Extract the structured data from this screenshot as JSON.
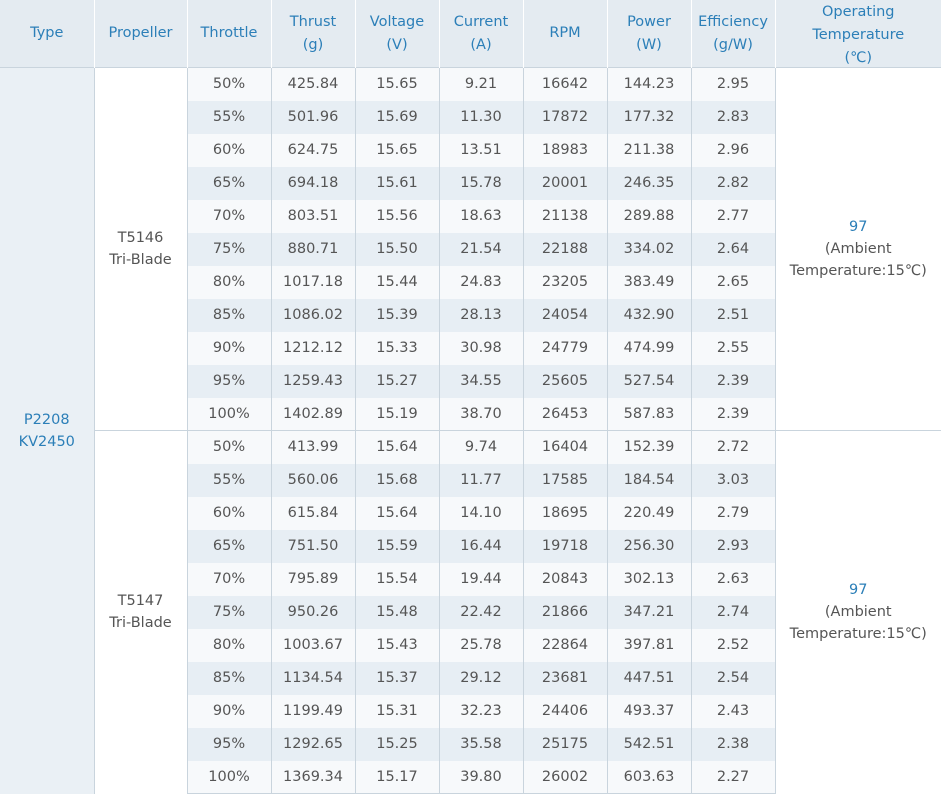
{
  "headers": {
    "type": "Type",
    "propeller": "Propeller",
    "throttle": "Throttle",
    "thrust": [
      "Thrust",
      "(g)"
    ],
    "voltage": [
      "Voltage",
      "(V)"
    ],
    "current": [
      "Current",
      "(A)"
    ],
    "rpm": "RPM",
    "power": [
      "Power",
      "(W)"
    ],
    "efficiency": [
      "Efficiency",
      "(g/W)"
    ],
    "operating_temperature": [
      "Operating",
      "Temperature",
      "(℃)"
    ]
  },
  "type": [
    "P2208",
    "KV2450"
  ],
  "groups": [
    {
      "propeller": [
        "T5146",
        "Tri-Blade"
      ],
      "temperature": [
        "97",
        "(Ambient",
        "Temperature:15℃)"
      ],
      "rows": [
        [
          "50%",
          "425.84",
          "15.65",
          "9.21",
          "16642",
          "144.23",
          "2.95"
        ],
        [
          "55%",
          "501.96",
          "15.69",
          "11.30",
          "17872",
          "177.32",
          "2.83"
        ],
        [
          "60%",
          "624.75",
          "15.65",
          "13.51",
          "18983",
          "211.38",
          "2.96"
        ],
        [
          "65%",
          "694.18",
          "15.61",
          "15.78",
          "20001",
          "246.35",
          "2.82"
        ],
        [
          "70%",
          "803.51",
          "15.56",
          "18.63",
          "21138",
          "289.88",
          "2.77"
        ],
        [
          "75%",
          "880.71",
          "15.50",
          "21.54",
          "22188",
          "334.02",
          "2.64"
        ],
        [
          "80%",
          "1017.18",
          "15.44",
          "24.83",
          "23205",
          "383.49",
          "2.65"
        ],
        [
          "85%",
          "1086.02",
          "15.39",
          "28.13",
          "24054",
          "432.90",
          "2.51"
        ],
        [
          "90%",
          "1212.12",
          "15.33",
          "30.98",
          "24779",
          "474.99",
          "2.55"
        ],
        [
          "95%",
          "1259.43",
          "15.27",
          "34.55",
          "25605",
          "527.54",
          "2.39"
        ],
        [
          "100%",
          "1402.89",
          "15.19",
          "38.70",
          "26453",
          "587.83",
          "2.39"
        ]
      ]
    },
    {
      "propeller": [
        "T5147",
        "Tri-Blade"
      ],
      "temperature": [
        "97",
        "(Ambient",
        "Temperature:15℃)"
      ],
      "rows": [
        [
          "50%",
          "413.99",
          "15.64",
          "9.74",
          "16404",
          "152.39",
          "2.72"
        ],
        [
          "55%",
          "560.06",
          "15.68",
          "11.77",
          "17585",
          "184.54",
          "3.03"
        ],
        [
          "60%",
          "615.84",
          "15.64",
          "14.10",
          "18695",
          "220.49",
          "2.79"
        ],
        [
          "65%",
          "751.50",
          "15.59",
          "16.44",
          "19718",
          "256.30",
          "2.93"
        ],
        [
          "70%",
          "795.89",
          "15.54",
          "19.44",
          "20843",
          "302.13",
          "2.63"
        ],
        [
          "75%",
          "950.26",
          "15.48",
          "22.42",
          "21866",
          "347.21",
          "2.74"
        ],
        [
          "80%",
          "1003.67",
          "15.43",
          "25.78",
          "22864",
          "397.81",
          "2.52"
        ],
        [
          "85%",
          "1134.54",
          "15.37",
          "29.12",
          "23681",
          "447.51",
          "2.54"
        ],
        [
          "90%",
          "1199.49",
          "15.31",
          "32.23",
          "24406",
          "493.37",
          "2.43"
        ],
        [
          "95%",
          "1292.65",
          "15.25",
          "35.58",
          "25175",
          "542.51",
          "2.38"
        ],
        [
          "100%",
          "1369.34",
          "15.17",
          "39.80",
          "26002",
          "603.63",
          "2.27"
        ]
      ]
    }
  ],
  "colors": {
    "header_bg": "#e4ebf1",
    "header_text": "#2c7fb8",
    "row_light": "#f7f9fb",
    "row_dark": "#e7eef4",
    "body_text": "#555555"
  }
}
